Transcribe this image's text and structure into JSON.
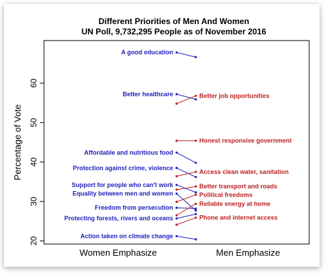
{
  "chart_data": {
    "type": "line",
    "title": "Different Priorities of Men And Women",
    "subtitle": "UN Poll, 9,732,295 People as of November 2016",
    "ylabel": "Percentage of Vote",
    "xlabel": "",
    "categories": [
      "Women Emphasize",
      "Men Emphasize"
    ],
    "ylim": [
      19.2,
      70.8
    ],
    "yticks": [
      20,
      30,
      40,
      50,
      60
    ],
    "colors": {
      "women": "#2222bb",
      "men": "#bb2222"
    },
    "women_labels": [
      "A good education",
      "Better healthcare",
      "Affordable and nutritious food",
      "Protection against crime, violence",
      "Support for people who can't work",
      "Equality between men and women",
      "Freedom from persecution",
      "Protecting forests, rivers and oceans",
      "Action taken on climate change"
    ],
    "men_labels": [
      "Better job opportunities",
      "Honest responsive government",
      "Access clean water, sanitation",
      "Better transport and roads",
      "Political freedoms",
      "Reliable energy at home",
      "Phone and internet access"
    ],
    "series": [
      {
        "name": "A good education",
        "group": "women",
        "values": [
          67.8,
          66.6
        ]
      },
      {
        "name": "Better healthcare",
        "group": "women",
        "values": [
          57.2,
          55.9
        ]
      },
      {
        "name": "Affordable and nutritious food",
        "group": "women",
        "values": [
          42.4,
          39.8
        ]
      },
      {
        "name": "Protection against crime, violence",
        "group": "women",
        "values": [
          38.5,
          36.2
        ]
      },
      {
        "name": "Support for people who can't work",
        "group": "women",
        "values": [
          34.2,
          32.3
        ]
      },
      {
        "name": "Equality between men and women",
        "group": "women",
        "values": [
          32.0,
          27.7
        ]
      },
      {
        "name": "Freedom from persecution",
        "group": "women",
        "values": [
          28.4,
          28.2
        ]
      },
      {
        "name": "Protecting forests, rivers and oceans",
        "group": "women",
        "values": [
          25.7,
          26.8
        ]
      },
      {
        "name": "Action taken on climate change",
        "group": "women",
        "values": [
          21.2,
          20.4
        ]
      },
      {
        "name": "Better job opportunities",
        "group": "men",
        "values": [
          54.8,
          56.8
        ]
      },
      {
        "name": "Honest responsive government",
        "group": "men",
        "values": [
          45.4,
          45.4
        ]
      },
      {
        "name": "Access clean water, sanitation",
        "group": "men",
        "values": [
          36.4,
          37.5
        ]
      },
      {
        "name": "Better transport and roads",
        "group": "men",
        "values": [
          33.0,
          33.8
        ]
      },
      {
        "name": "Political freedoms",
        "group": "men",
        "values": [
          29.9,
          31.7
        ]
      },
      {
        "name": "Reliable energy at home",
        "group": "men",
        "values": [
          26.5,
          29.4
        ]
      },
      {
        "name": "Phone and internet access",
        "group": "men",
        "values": [
          24.1,
          25.9
        ]
      }
    ]
  }
}
